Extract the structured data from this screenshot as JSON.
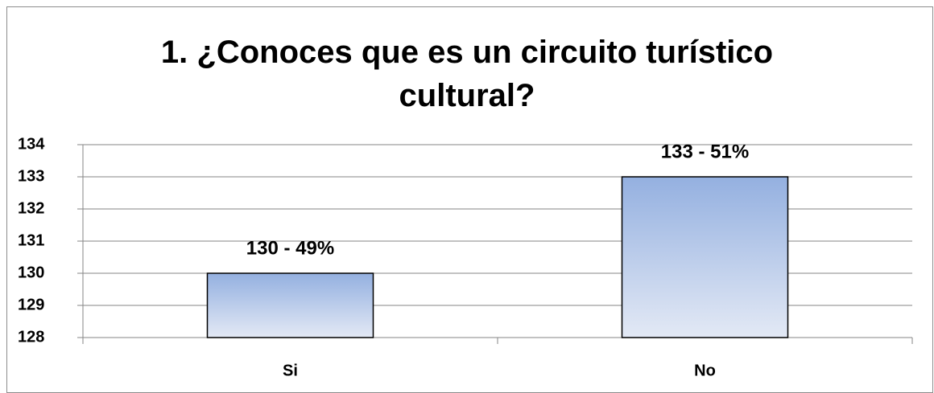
{
  "chart_data": {
    "type": "bar",
    "title": "1. ¿Conoces que es un circuito turístico cultural?",
    "categories": [
      "Si",
      "No"
    ],
    "values": [
      130,
      133
    ],
    "value_labels": [
      "130 - 49%",
      "133 - 51%"
    ],
    "color": "#94b0e0",
    "ylim": [
      128,
      134
    ],
    "yticks": [
      128,
      129,
      130,
      131,
      132,
      133,
      134
    ],
    "grid": true
  }
}
